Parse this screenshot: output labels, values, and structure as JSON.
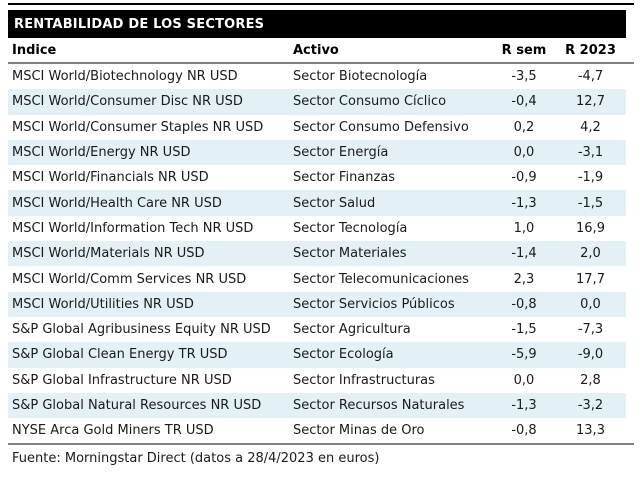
{
  "title": "RENTABILIDAD DE LOS SECTORES",
  "footer": "Fuente: Morningstar Direct (datos a 28/4/2023 en euros)",
  "colors": {
    "title_bar_bg": "#000000",
    "title_text": "#ffffff",
    "alt_row_bg": "#e3f1f7",
    "rule_gray": "#808080",
    "top_line": "#000000",
    "body_text": "#1a1a1a"
  },
  "chart_data": {
    "type": "table",
    "title": "RENTABILIDAD DE LOS SECTORES",
    "columns": [
      "Índice",
      "Activo",
      "R sem",
      "R 2023"
    ],
    "rows": [
      [
        "MSCI World/Biotechnology NR USD",
        "Sector Biotecnología",
        "-3,5",
        "-4,7"
      ],
      [
        "MSCI World/Consumer Disc NR USD",
        "Sector Consumo Cíclico",
        "-0,4",
        "12,7"
      ],
      [
        "MSCI World/Consumer Staples NR USD",
        "Sector Consumo Defensivo",
        "0,2",
        "4,2"
      ],
      [
        "MSCI World/Energy NR USD",
        "Sector Energía",
        "0,0",
        "-3,1"
      ],
      [
        "MSCI World/Financials NR USD",
        "Sector Finanzas",
        "-0,9",
        "-1,9"
      ],
      [
        "MSCI World/Health Care NR USD",
        "Sector Salud",
        "-1,3",
        "-1,5"
      ],
      [
        "MSCI World/Information Tech NR USD",
        "Sector Tecnología",
        "1,0",
        "16,9"
      ],
      [
        "MSCI World/Materials NR USD",
        "Sector Materiales",
        "-1,4",
        "2,0"
      ],
      [
        "MSCI World/Comm Services NR USD",
        "Sector Telecomunicaciones",
        "2,3",
        "17,7"
      ],
      [
        "MSCI World/Utilities NR USD",
        "Sector Servicios Públicos",
        "-0,8",
        "0,0"
      ],
      [
        "S&P Global Agribusiness Equity NR USD",
        "Sector Agricultura",
        "-1,5",
        "-7,3"
      ],
      [
        "S&P Global Clean Energy TR USD",
        "Sector Ecología",
        "-5,9",
        "-9,0"
      ],
      [
        "S&P Global Infrastructure NR USD",
        "Sector Infrastructuras",
        "0,0",
        "2,8"
      ],
      [
        "S&P Global Natural Resources NR USD",
        "Sector Recursos Naturales",
        "-1,3",
        "-3,2"
      ],
      [
        "NYSE Arca Gold Miners TR USD",
        "Sector Minas de Oro",
        "-0,8",
        "13,3"
      ]
    ],
    "numeric": {
      "r_sem": [
        -3.5,
        -0.4,
        0.2,
        0.0,
        -0.9,
        -1.3,
        1.0,
        -1.4,
        2.3,
        -0.8,
        -1.5,
        -5.9,
        0.0,
        -1.3,
        -0.8
      ],
      "r_2023": [
        -4.7,
        12.7,
        4.2,
        -3.1,
        -1.9,
        -1.5,
        16.9,
        2.0,
        17.7,
        0.0,
        -7.3,
        -9.0,
        2.8,
        -3.2,
        13.3
      ]
    },
    "source": "Fuente: Morningstar Direct (datos a 28/4/2023 en euros)",
    "layout": {
      "alternating_rows": true,
      "numeric_columns_alignment": "center"
    }
  }
}
